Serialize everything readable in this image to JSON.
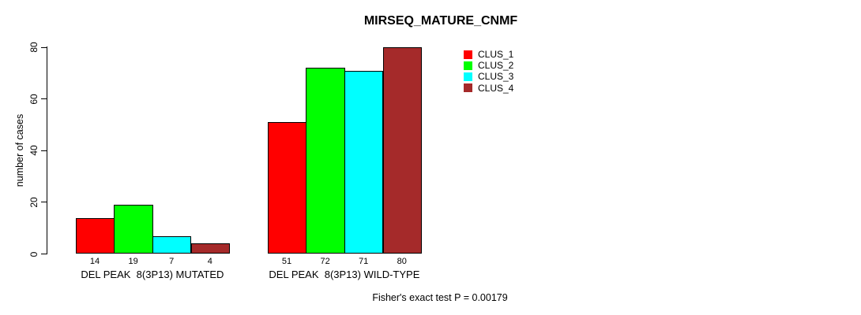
{
  "title": "MIRSEQ_MATURE_CNMF",
  "footer": "Fisher's exact test P = 0.00179",
  "chart_data": {
    "type": "bar",
    "grouped": true,
    "title": "MIRSEQ_MATURE_CNMF",
    "xlabel": "",
    "ylabel": "number of cases",
    "ylim": [
      0,
      80
    ],
    "yticks": [
      0,
      20,
      40,
      60,
      80
    ],
    "grid": false,
    "legend_position": "right-top",
    "bar_value_labels_shown": true,
    "categories": [
      "DEL PEAK  8(3P13) MUTATED",
      "DEL PEAK  8(3P13) WILD-TYPE"
    ],
    "series": [
      {
        "name": "CLUS_1",
        "color": "#ff0000",
        "values": [
          14,
          51
        ]
      },
      {
        "name": "CLUS_2",
        "color": "#00ff00",
        "values": [
          19,
          72
        ]
      },
      {
        "name": "CLUS_3",
        "color": "#00ffff",
        "values": [
          7,
          71
        ]
      },
      {
        "name": "CLUS_4",
        "color": "#a52a2a",
        "values": [
          4,
          80
        ]
      }
    ],
    "annotation": "Fisher's exact test P = 0.00179"
  }
}
